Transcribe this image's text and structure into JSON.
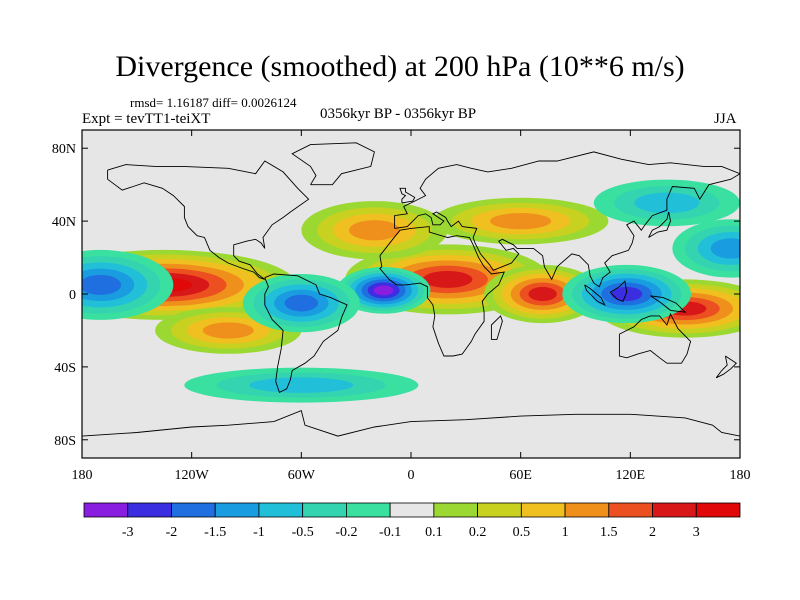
{
  "title": "Divergence (smoothed) at 200 hPa (10**6 m/s)",
  "stats_text": "rmsd= 1.16187  diff= 0.0026124",
  "experiment_text": "Expt = tevTT1-teiXT",
  "period_text": "0356kyr BP - 0356kyr BP",
  "season": "JJA",
  "map": {
    "projection": "cylindrical equidistant",
    "lon_range": [
      -180,
      180
    ],
    "lat_range": [
      -90,
      90
    ],
    "lat_ticks": [
      {
        "value": 80,
        "label": "80N"
      },
      {
        "value": 40,
        "label": "40N"
      },
      {
        "value": 0,
        "label": "0"
      },
      {
        "value": -40,
        "label": "40S"
      },
      {
        "value": -80,
        "label": "80S"
      }
    ],
    "lon_ticks": [
      {
        "value": -180,
        "label": "180"
      },
      {
        "value": -120,
        "label": "120W"
      },
      {
        "value": -60,
        "label": "60W"
      },
      {
        "value": 0,
        "label": "0"
      },
      {
        "value": 60,
        "label": "60E"
      },
      {
        "value": 120,
        "label": "120E"
      },
      {
        "value": 180,
        "label": "180"
      }
    ]
  },
  "colorbar": {
    "labels": [
      "-3",
      "-2",
      "-1.5",
      "-1",
      "-0.5",
      "-0.2",
      "-0.1",
      "0.1",
      "0.2",
      "0.5",
      "1",
      "1.5",
      "2",
      "3"
    ],
    "colors": [
      "#8a1ee0",
      "#3a2ee0",
      "#1f6fe0",
      "#1a9de0",
      "#22c0d8",
      "#34d4b0",
      "#3ae0a0",
      "#e6e6e6",
      "#9cd832",
      "#c8d020",
      "#f0c020",
      "#f0901c",
      "#ec5020",
      "#d81818",
      "#e00808"
    ]
  },
  "chart_data": {
    "type": "heatmap",
    "title": "Divergence (smoothed) at 200 hPa (10**6 m/s)",
    "units": "10**6 m/s",
    "season": "JJA",
    "levels": [
      -3,
      -2,
      -1.5,
      -1,
      -0.5,
      -0.2,
      -0.1,
      0.1,
      0.2,
      0.5,
      1,
      1.5,
      2,
      3
    ],
    "features": [
      {
        "name": "east-pacific-divergence",
        "lon": -135,
        "lat": 5,
        "rlon": 45,
        "rlat": 12,
        "value": 3
      },
      {
        "name": "west-pacific-divergence",
        "lon": 150,
        "lat": -8,
        "rlon": 30,
        "rlat": 10,
        "value": 2.5
      },
      {
        "name": "africa-divergence",
        "lon": 20,
        "lat": 8,
        "rlon": 35,
        "rlat": 12,
        "value": 2.2
      },
      {
        "name": "indian-ocean-divergence",
        "lon": 72,
        "lat": 0,
        "rlon": 20,
        "rlat": 10,
        "value": 2.5
      },
      {
        "name": "north-atlantic-divergence",
        "lon": -20,
        "lat": 35,
        "rlon": 25,
        "rlat": 10,
        "value": 1.2
      },
      {
        "name": "eurasia-divergence",
        "lon": 60,
        "lat": 40,
        "rlon": 30,
        "rlat": 8,
        "value": 1.2
      },
      {
        "name": "south-pacific-divergence",
        "lon": -100,
        "lat": -20,
        "rlon": 25,
        "rlat": 8,
        "value": 1.0
      },
      {
        "name": "atlantic-convergence",
        "lon": -15,
        "lat": 2,
        "rlon": 16,
        "rlat": 8,
        "value": -3
      },
      {
        "name": "indonesia-convergence",
        "lon": 118,
        "lat": 0,
        "rlon": 22,
        "rlat": 10,
        "value": -2.5
      },
      {
        "name": "central-pacific-convergence",
        "lon": -170,
        "lat": 5,
        "rlon": 25,
        "rlat": 12,
        "value": -1.8
      },
      {
        "name": "amazon-convergence",
        "lon": -60,
        "lat": -5,
        "rlon": 20,
        "rlat": 10,
        "value": -1.5
      },
      {
        "name": "western-pacific-convergence",
        "lon": 175,
        "lat": 25,
        "rlon": 20,
        "rlat": 10,
        "value": -1.2
      },
      {
        "name": "north-pacific-convergence",
        "lon": 140,
        "lat": 50,
        "rlon": 25,
        "rlat": 8,
        "value": -0.8
      },
      {
        "name": "southern-ocean-convergence",
        "lon": -60,
        "lat": -50,
        "rlon": 40,
        "rlat": 6,
        "value": -0.6
      }
    ]
  }
}
